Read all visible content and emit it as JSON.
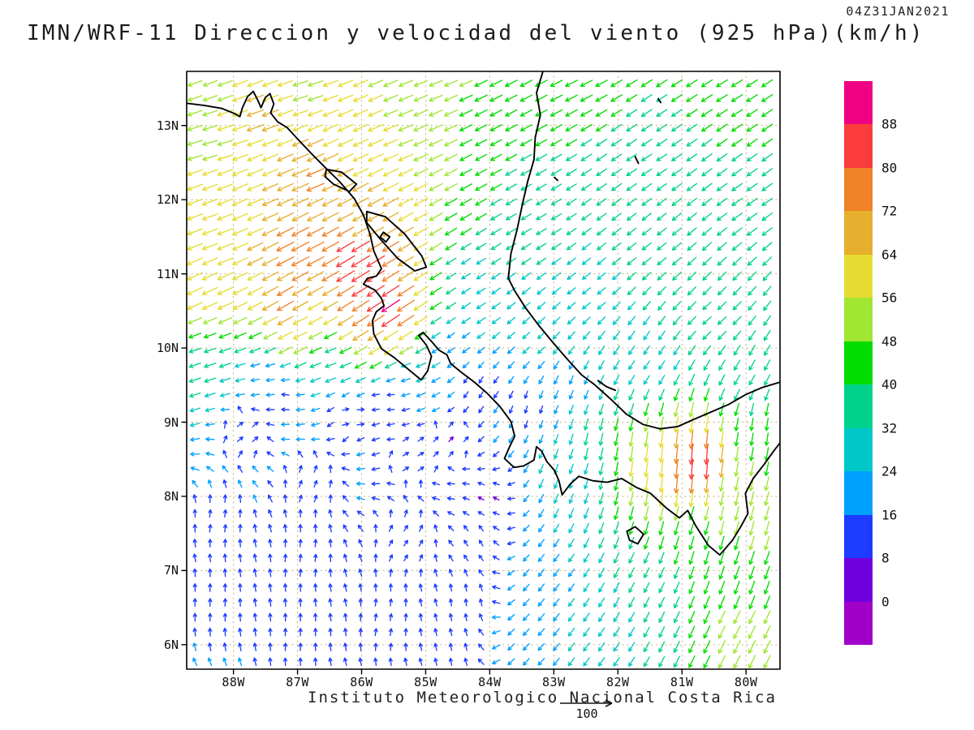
{
  "header": {
    "timestamp": "04Z31JAN2021",
    "title": "IMN/WRF-11 Direccion y velocidad del viento (925 hPa)(km/h)"
  },
  "footer": {
    "caption": "Instituto Meteorologico Nacional Costa Rica",
    "scale_label": "100"
  },
  "chart_data": {
    "type": "wind-vector-map",
    "title": "IMN/WRF-11 Direccion y velocidad del viento (925 hPa)(km/h)",
    "timestamp": "04Z31JAN2021",
    "units": "km/h",
    "lon_range": [
      -88.73,
      -79.47
    ],
    "lat_range": [
      5.67,
      13.73
    ],
    "x_tick_lons": [
      -88,
      -87,
      -86,
      -85,
      -84,
      -83,
      -82,
      -81,
      -80
    ],
    "x_tick_labels": [
      "88W",
      "87W",
      "86W",
      "85W",
      "84W",
      "83W",
      "82W",
      "81W",
      "80W"
    ],
    "y_tick_lats": [
      6,
      7,
      8,
      9,
      10,
      11,
      12,
      13
    ],
    "y_tick_labels": [
      "6N",
      "7N",
      "8N",
      "9N",
      "10N",
      "11N",
      "12N",
      "13N"
    ],
    "grid_step_deg": {
      "lon": 0.235,
      "lat": 0.2
    },
    "style": {
      "coast_color": "#000000",
      "grid_color": "rgba(190,165,90,0.85)",
      "axis_color": "#000000",
      "background": "#ffffff"
    },
    "colorbar": {
      "levels": [
        0,
        8,
        16,
        24,
        32,
        40,
        48,
        56,
        64,
        72,
        80,
        88
      ],
      "colors": [
        "#A000C8",
        "#6E00DC",
        "#1E3CFF",
        "#00A0FF",
        "#00C8C8",
        "#00D28C",
        "#00DC00",
        "#A0E632",
        "#E6DC32",
        "#E6AF2D",
        "#F08228",
        "#FA3C3C",
        "#F00082"
      ],
      "units": "km/h"
    },
    "reference_arrow": {
      "label": "100"
    },
    "wind_samples_format": [
      "lat_deg_n",
      "lon_deg_e",
      "direction_toward_deg_ccw_from_east",
      "speed_kmh"
    ],
    "wind_samples": [
      [
        13.6,
        -88.4,
        200,
        52
      ],
      [
        13.4,
        -86.9,
        198,
        55
      ],
      [
        13.15,
        -87.6,
        200,
        66
      ],
      [
        12.8,
        -88.3,
        196,
        55
      ],
      [
        13.0,
        -85.3,
        202,
        56
      ],
      [
        12.7,
        -86.3,
        205,
        60
      ],
      [
        12.35,
        -86.7,
        203,
        74
      ],
      [
        12.2,
        -87.5,
        203,
        64
      ],
      [
        11.8,
        -86.0,
        208,
        68
      ],
      [
        11.6,
        -88.4,
        200,
        60
      ],
      [
        11.3,
        -87.0,
        207,
        78
      ],
      [
        11.15,
        -86.05,
        211,
        90
      ],
      [
        11.0,
        -85.9,
        212,
        84
      ],
      [
        10.8,
        -88.5,
        205,
        64
      ],
      [
        10.6,
        -87.2,
        210,
        74
      ],
      [
        10.45,
        -85.55,
        214,
        93
      ],
      [
        10.4,
        -85.95,
        213,
        80
      ],
      [
        10.15,
        -87.0,
        207,
        58
      ],
      [
        10.05,
        -85.5,
        212,
        60
      ],
      [
        9.9,
        -88.4,
        198,
        38
      ],
      [
        9.85,
        -86.5,
        200,
        32
      ],
      [
        9.65,
        -85.3,
        195,
        22
      ],
      [
        9.55,
        -87.5,
        188,
        18
      ],
      [
        13.6,
        -84.8,
        203,
        48
      ],
      [
        13.6,
        -82.8,
        207,
        44
      ],
      [
        13.5,
        -80.3,
        212,
        42
      ],
      [
        12.6,
        -83.8,
        208,
        40
      ],
      [
        12.6,
        -81.5,
        213,
        38
      ],
      [
        12.0,
        -80.0,
        215,
        40
      ],
      [
        11.8,
        -83.2,
        210,
        34
      ],
      [
        11.5,
        -81.5,
        218,
        34
      ],
      [
        10.9,
        -84.3,
        212,
        28
      ],
      [
        10.8,
        -82.5,
        218,
        28
      ],
      [
        10.4,
        -80.5,
        222,
        33
      ],
      [
        10.1,
        -83.3,
        222,
        24
      ],
      [
        9.8,
        -81.5,
        235,
        27
      ],
      [
        9.6,
        -80.0,
        240,
        34
      ],
      [
        9.5,
        -82.7,
        248,
        22
      ],
      [
        10.0,
        -84.6,
        215,
        18
      ],
      [
        9.5,
        -84.2,
        240,
        12
      ],
      [
        9.2,
        -83.4,
        255,
        13
      ],
      [
        8.7,
        -82.3,
        258,
        40
      ],
      [
        8.45,
        -81.6,
        262,
        58
      ],
      [
        8.45,
        -80.78,
        266,
        90
      ],
      [
        8.3,
        -80.95,
        265,
        74
      ],
      [
        8.0,
        -80.2,
        258,
        48
      ],
      [
        8.9,
        -79.8,
        262,
        40
      ],
      [
        7.6,
        -80.8,
        252,
        44
      ],
      [
        7.0,
        -79.9,
        250,
        46
      ],
      [
        7.6,
        -79.6,
        255,
        50
      ],
      [
        6.1,
        -80.1,
        243,
        50
      ],
      [
        6.8,
        -81.6,
        242,
        32
      ],
      [
        6.0,
        -82.3,
        235,
        28
      ],
      [
        8.3,
        -82.8,
        250,
        26
      ],
      [
        6.9,
        -83.0,
        232,
        22
      ],
      [
        6.0,
        -83.3,
        228,
        22
      ],
      [
        9.1,
        -86.2,
        15,
        8
      ],
      [
        8.9,
        -87.8,
        35,
        10
      ],
      [
        8.6,
        -85.2,
        30,
        8
      ],
      [
        9.35,
        -87.2,
        170,
        12
      ],
      [
        9.3,
        -85.6,
        175,
        9
      ],
      [
        8.2,
        -86.8,
        65,
        10
      ],
      [
        7.7,
        -88.2,
        82,
        13
      ],
      [
        7.2,
        -86.9,
        83,
        12
      ],
      [
        6.6,
        -88.3,
        88,
        14
      ],
      [
        6.1,
        -87.0,
        88,
        13
      ],
      [
        6.3,
        -85.6,
        80,
        11
      ],
      [
        7.4,
        -85.3,
        55,
        9
      ],
      [
        6.6,
        -84.4,
        95,
        11
      ],
      [
        5.9,
        -84.6,
        100,
        12
      ],
      [
        7.4,
        -84.2,
        120,
        9
      ],
      [
        8.0,
        -84.0,
        150,
        7
      ],
      [
        8.8,
        -84.6,
        45,
        7
      ]
    ],
    "coastlines": {
      "paths": [
        {
          "name": "pacific-coast",
          "pts": [
            [
              -88.73,
              13.3
            ],
            [
              -88.45,
              13.27
            ],
            [
              -88.18,
              13.23
            ],
            [
              -87.98,
              13.16
            ],
            [
              -87.9,
              13.12
            ],
            [
              -87.86,
              13.24
            ],
            [
              -87.78,
              13.39
            ],
            [
              -87.69,
              13.46
            ],
            [
              -87.62,
              13.34
            ],
            [
              -87.57,
              13.24
            ],
            [
              -87.5,
              13.38
            ],
            [
              -87.43,
              13.43
            ],
            [
              -87.37,
              13.29
            ],
            [
              -87.42,
              13.17
            ],
            [
              -87.31,
              13.05
            ],
            [
              -87.16,
              12.97
            ],
            [
              -86.99,
              12.81
            ],
            [
              -86.77,
              12.61
            ],
            [
              -86.54,
              12.41
            ],
            [
              -86.34,
              12.24
            ],
            [
              -86.11,
              12.01
            ],
            [
              -85.97,
              11.79
            ],
            [
              -85.87,
              11.54
            ],
            [
              -85.81,
              11.31
            ],
            [
              -85.69,
              11.07
            ],
            [
              -85.77,
              10.97
            ],
            [
              -85.91,
              10.94
            ],
            [
              -85.97,
              10.86
            ],
            [
              -85.79,
              10.78
            ],
            [
              -85.69,
              10.67
            ],
            [
              -85.65,
              10.57
            ],
            [
              -85.77,
              10.49
            ],
            [
              -85.83,
              10.37
            ],
            [
              -85.81,
              10.19
            ],
            [
              -85.69,
              9.99
            ],
            [
              -85.49,
              9.87
            ],
            [
              -85.24,
              9.69
            ],
            [
              -85.07,
              9.57
            ],
            [
              -84.97,
              9.69
            ],
            [
              -84.91,
              9.89
            ],
            [
              -84.99,
              10.04
            ],
            [
              -85.11,
              10.17
            ],
            [
              -85.04,
              10.21
            ],
            [
              -84.91,
              10.09
            ],
            [
              -84.79,
              9.97
            ],
            [
              -84.67,
              9.91
            ],
            [
              -84.61,
              9.79
            ],
            [
              -84.44,
              9.67
            ],
            [
              -84.24,
              9.54
            ],
            [
              -84.04,
              9.39
            ],
            [
              -83.84,
              9.21
            ],
            [
              -83.67,
              9.01
            ],
            [
              -83.61,
              8.81
            ],
            [
              -83.69,
              8.67
            ],
            [
              -83.77,
              8.51
            ],
            [
              -83.62,
              8.39
            ],
            [
              -83.47,
              8.41
            ],
            [
              -83.31,
              8.49
            ],
            [
              -83.27,
              8.67
            ],
            [
              -83.19,
              8.61
            ],
            [
              -83.11,
              8.47
            ],
            [
              -82.99,
              8.35
            ],
            [
              -82.92,
              8.21
            ],
            [
              -82.87,
              8.02
            ],
            [
              -82.74,
              8.17
            ],
            [
              -82.61,
              8.27
            ],
            [
              -82.39,
              8.21
            ],
            [
              -82.17,
              8.19
            ],
            [
              -81.94,
              8.24
            ],
            [
              -81.71,
              8.12
            ],
            [
              -81.49,
              8.04
            ],
            [
              -81.24,
              7.84
            ],
            [
              -81.04,
              7.71
            ],
            [
              -80.91,
              7.81
            ],
            [
              -80.79,
              7.61
            ],
            [
              -80.59,
              7.34
            ],
            [
              -80.41,
              7.21
            ],
            [
              -80.21,
              7.41
            ],
            [
              -80.07,
              7.61
            ],
            [
              -79.97,
              7.77
            ],
            [
              -80.01,
              8.04
            ],
            [
              -79.89,
              8.24
            ],
            [
              -79.71,
              8.44
            ],
            [
              -79.57,
              8.61
            ],
            [
              -79.47,
              8.72
            ]
          ]
        },
        {
          "name": "caribbean-coast",
          "pts": [
            [
              -83.17,
              13.73
            ],
            [
              -83.27,
              13.44
            ],
            [
              -83.21,
              13.14
            ],
            [
              -83.29,
              12.84
            ],
            [
              -83.31,
              12.54
            ],
            [
              -83.41,
              12.24
            ],
            [
              -83.49,
              11.94
            ],
            [
              -83.57,
              11.61
            ],
            [
              -83.67,
              11.27
            ],
            [
              -83.71,
              10.94
            ],
            [
              -83.61,
              10.77
            ],
            [
              -83.44,
              10.54
            ],
            [
              -83.24,
              10.31
            ],
            [
              -83.01,
              10.07
            ],
            [
              -82.81,
              9.87
            ],
            [
              -82.57,
              9.64
            ],
            [
              -82.37,
              9.51
            ],
            [
              -82.24,
              9.41
            ],
            [
              -82.11,
              9.31
            ],
            [
              -81.87,
              9.11
            ],
            [
              -81.61,
              8.97
            ],
            [
              -81.34,
              8.91
            ],
            [
              -81.07,
              8.94
            ],
            [
              -80.81,
              9.04
            ],
            [
              -80.54,
              9.14
            ],
            [
              -80.27,
              9.24
            ],
            [
              -80.01,
              9.37
            ],
            [
              -79.74,
              9.47
            ],
            [
              -79.47,
              9.54
            ]
          ]
        },
        {
          "name": "lake-nicaragua",
          "pts": [
            [
              -85.92,
              11.84
            ],
            [
              -85.63,
              11.77
            ],
            [
              -85.33,
              11.54
            ],
            [
              -85.06,
              11.24
            ],
            [
              -84.99,
              11.09
            ],
            [
              -85.17,
              11.04
            ],
            [
              -85.44,
              11.21
            ],
            [
              -85.71,
              11.47
            ],
            [
              -85.92,
              11.69
            ],
            [
              -85.92,
              11.84
            ]
          ]
        },
        {
          "name": "lake-managua",
          "pts": [
            [
              -86.55,
              12.41
            ],
            [
              -86.31,
              12.37
            ],
            [
              -86.08,
              12.21
            ],
            [
              -86.19,
              12.11
            ],
            [
              -86.44,
              12.21
            ],
            [
              -86.57,
              12.31
            ],
            [
              -86.55,
              12.41
            ]
          ]
        },
        {
          "name": "ometepe-island",
          "pts": [
            [
              -85.66,
              11.56
            ],
            [
              -85.56,
              11.5
            ],
            [
              -85.62,
              11.43
            ],
            [
              -85.71,
              11.5
            ],
            [
              -85.66,
              11.56
            ]
          ]
        },
        {
          "name": "coiba-island",
          "pts": [
            [
              -81.86,
              7.53
            ],
            [
              -81.73,
              7.59
            ],
            [
              -81.6,
              7.49
            ],
            [
              -81.69,
              7.36
            ],
            [
              -81.82,
              7.41
            ],
            [
              -81.86,
              7.53
            ]
          ]
        },
        {
          "name": "providencia-island",
          "pts": [
            [
              -81.37,
              13.36
            ],
            [
              -81.33,
              13.31
            ]
          ]
        },
        {
          "name": "san-andres-island",
          "pts": [
            [
              -81.73,
              12.58
            ],
            [
              -81.68,
              12.49
            ]
          ]
        },
        {
          "name": "corn-islands",
          "pts": [
            [
              -82.99,
              12.3
            ],
            [
              -82.94,
              12.26
            ]
          ]
        },
        {
          "name": "bocas-del-toro",
          "pts": [
            [
              -82.31,
              9.56
            ],
            [
              -82.18,
              9.48
            ],
            [
              -82.04,
              9.43
            ]
          ]
        }
      ]
    }
  }
}
